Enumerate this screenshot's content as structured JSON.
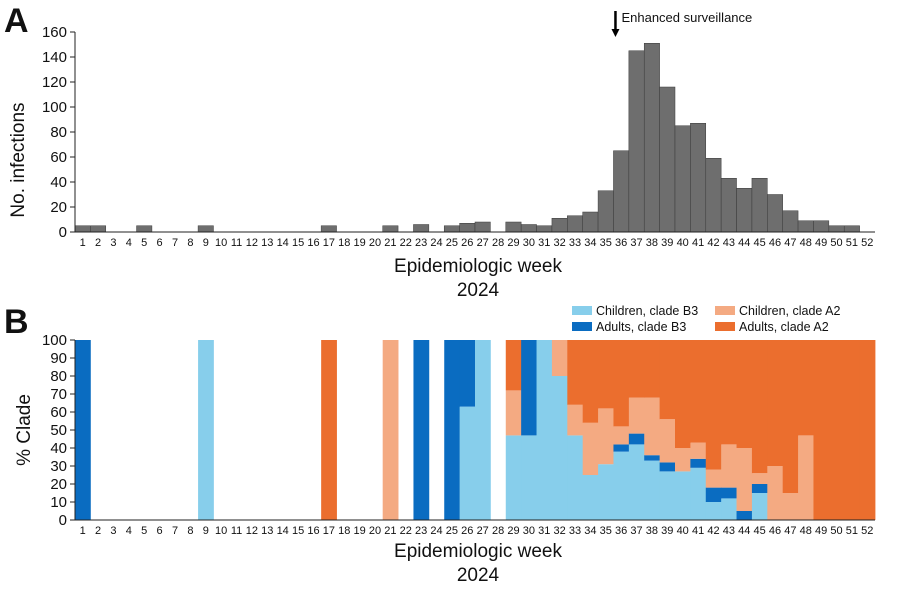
{
  "figure": {
    "panel_a_label": "A",
    "panel_b_label": "B"
  },
  "chart_data": [
    {
      "type": "bar",
      "panel": "A",
      "ylabel": "No. infections",
      "xlabel": "Epidemiologic week",
      "xlabel2": "2024",
      "ylim": [
        0,
        160
      ],
      "yticks": [
        0,
        20,
        40,
        60,
        80,
        100,
        120,
        140,
        160
      ],
      "categories": [
        "1",
        "2",
        "3",
        "4",
        "5",
        "6",
        "7",
        "8",
        "9",
        "10",
        "11",
        "12",
        "13",
        "14",
        "15",
        "16",
        "17",
        "18",
        "19",
        "20",
        "21",
        "22",
        "23",
        "24",
        "25",
        "26",
        "27",
        "28",
        "29",
        "30",
        "31",
        "32",
        "33",
        "34",
        "35",
        "36",
        "37",
        "38",
        "39",
        "40",
        "41",
        "42",
        "43",
        "44",
        "45",
        "46",
        "47",
        "48",
        "49",
        "50",
        "51",
        "52"
      ],
      "values": [
        5,
        5,
        0,
        0,
        5,
        0,
        0,
        0,
        5,
        0,
        0,
        0,
        0,
        0,
        0,
        0,
        5,
        0,
        0,
        0,
        5,
        0,
        6,
        0,
        5,
        7,
        8,
        0,
        8,
        6,
        5,
        11,
        13,
        16,
        33,
        65,
        145,
        151,
        116,
        85,
        87,
        59,
        43,
        35,
        43,
        30,
        17,
        9,
        9,
        5,
        5,
        0
      ],
      "annotation": {
        "text": "Enhanced surveillance",
        "week": 35
      },
      "bar_color": "#6e6e6e"
    },
    {
      "type": "bar",
      "subtype": "stacked-percent",
      "panel": "B",
      "ylabel": "% Clade",
      "xlabel": "Epidemiologic week",
      "xlabel2": "2024",
      "ylim": [
        0,
        100
      ],
      "yticks": [
        0,
        10,
        20,
        30,
        40,
        50,
        60,
        70,
        80,
        90,
        100
      ],
      "categories": [
        "1",
        "2",
        "3",
        "4",
        "5",
        "6",
        "7",
        "8",
        "9",
        "10",
        "11",
        "12",
        "13",
        "14",
        "15",
        "16",
        "17",
        "18",
        "19",
        "20",
        "21",
        "22",
        "23",
        "24",
        "25",
        "26",
        "27",
        "28",
        "29",
        "30",
        "31",
        "32",
        "33",
        "34",
        "35",
        "36",
        "37",
        "38",
        "39",
        "40",
        "41",
        "42",
        "43",
        "44",
        "45",
        "46",
        "47",
        "48",
        "49",
        "50",
        "51",
        "52"
      ],
      "legend": [
        {
          "name": "Children, clade B3",
          "color": "#87ceeb"
        },
        {
          "name": "Children, clade A2",
          "color": "#f4aa82"
        },
        {
          "name": "Adults, clade B3",
          "color": "#0a6cc1"
        },
        {
          "name": "Adults, clade A2",
          "color": "#eb6e2e"
        }
      ],
      "series": [
        {
          "name": "Children, clade B3",
          "color": "#87ceeb",
          "values": [
            0,
            0,
            0,
            0,
            0,
            0,
            0,
            0,
            100,
            0,
            0,
            0,
            0,
            0,
            0,
            0,
            0,
            0,
            0,
            0,
            0,
            0,
            0,
            0,
            0,
            63,
            100,
            0,
            47,
            47,
            100,
            80,
            47,
            25,
            31,
            38,
            42,
            33,
            27,
            27,
            29,
            10,
            12,
            0,
            15,
            0,
            0,
            0,
            0,
            0,
            0,
            0
          ]
        },
        {
          "name": "Adults, clade B3",
          "color": "#0a6cc1",
          "values": [
            100,
            0,
            0,
            0,
            0,
            0,
            0,
            0,
            0,
            0,
            0,
            0,
            0,
            0,
            0,
            0,
            0,
            0,
            0,
            0,
            0,
            0,
            100,
            0,
            100,
            37,
            0,
            0,
            0,
            53,
            0,
            0,
            0,
            0,
            0,
            4,
            6,
            3,
            5,
            0,
            5,
            8,
            6,
            5,
            5,
            0,
            0,
            0,
            0,
            0,
            0,
            0
          ]
        },
        {
          "name": "Children, clade A2",
          "color": "#f4aa82",
          "values": [
            0,
            0,
            0,
            0,
            0,
            0,
            0,
            0,
            0,
            0,
            0,
            0,
            0,
            0,
            0,
            0,
            0,
            0,
            0,
            0,
            100,
            0,
            0,
            0,
            0,
            0,
            0,
            0,
            25,
            0,
            0,
            20,
            17,
            29,
            31,
            10,
            20,
            32,
            24,
            13,
            9,
            10,
            24,
            35,
            6,
            30,
            15,
            47,
            0,
            0,
            0,
            0
          ]
        },
        {
          "name": "Adults, clade A2",
          "color": "#eb6e2e",
          "values": [
            0,
            0,
            0,
            0,
            0,
            0,
            0,
            0,
            0,
            0,
            0,
            0,
            0,
            0,
            0,
            0,
            100,
            0,
            0,
            0,
            0,
            0,
            0,
            0,
            0,
            0,
            0,
            0,
            28,
            0,
            0,
            0,
            36,
            46,
            38,
            48,
            32,
            32,
            44,
            60,
            57,
            72,
            58,
            60,
            74,
            70,
            85,
            53,
            100,
            100,
            100,
            100
          ]
        }
      ]
    }
  ]
}
